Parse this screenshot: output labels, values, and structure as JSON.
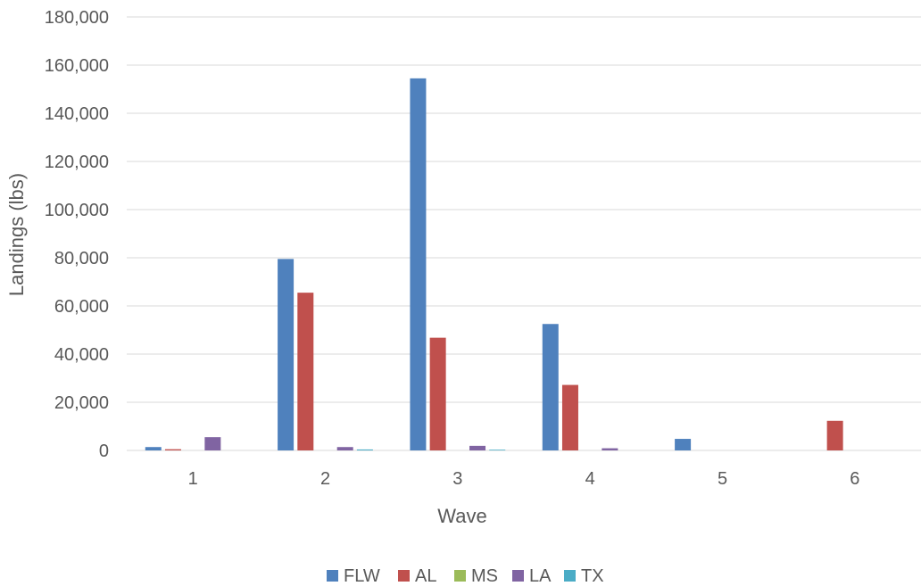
{
  "chart_data": {
    "type": "bar",
    "xlabel": "Wave",
    "ylabel": "Landings (lbs)",
    "categories": [
      "1",
      "2",
      "3",
      "4",
      "5",
      "6"
    ],
    "ylim": [
      0,
      180000
    ],
    "yticks": [
      0,
      20000,
      40000,
      60000,
      80000,
      100000,
      120000,
      140000,
      160000,
      180000
    ],
    "ytick_labels": [
      "0",
      "20,000",
      "40,000",
      "60,000",
      "80,000",
      "100,000",
      "120,000",
      "140,000",
      "160,000",
      "180,000"
    ],
    "grid": true,
    "legend": "bottom",
    "series": [
      {
        "name": "FLW",
        "color": "#4f81bd",
        "values": [
          1400,
          79500,
          154500,
          52500,
          4800,
          0
        ]
      },
      {
        "name": "AL",
        "color": "#c0504d",
        "values": [
          500,
          65500,
          46800,
          27200,
          0,
          12300
        ]
      },
      {
        "name": "MS",
        "color": "#9bbb59",
        "values": [
          0,
          0,
          0,
          0,
          0,
          0
        ]
      },
      {
        "name": "LA",
        "color": "#8064a2",
        "values": [
          5500,
          1400,
          1900,
          900,
          0,
          0
        ]
      },
      {
        "name": "TX",
        "color": "#4bacc6",
        "values": [
          0,
          400,
          300,
          0,
          0,
          0
        ]
      }
    ]
  }
}
